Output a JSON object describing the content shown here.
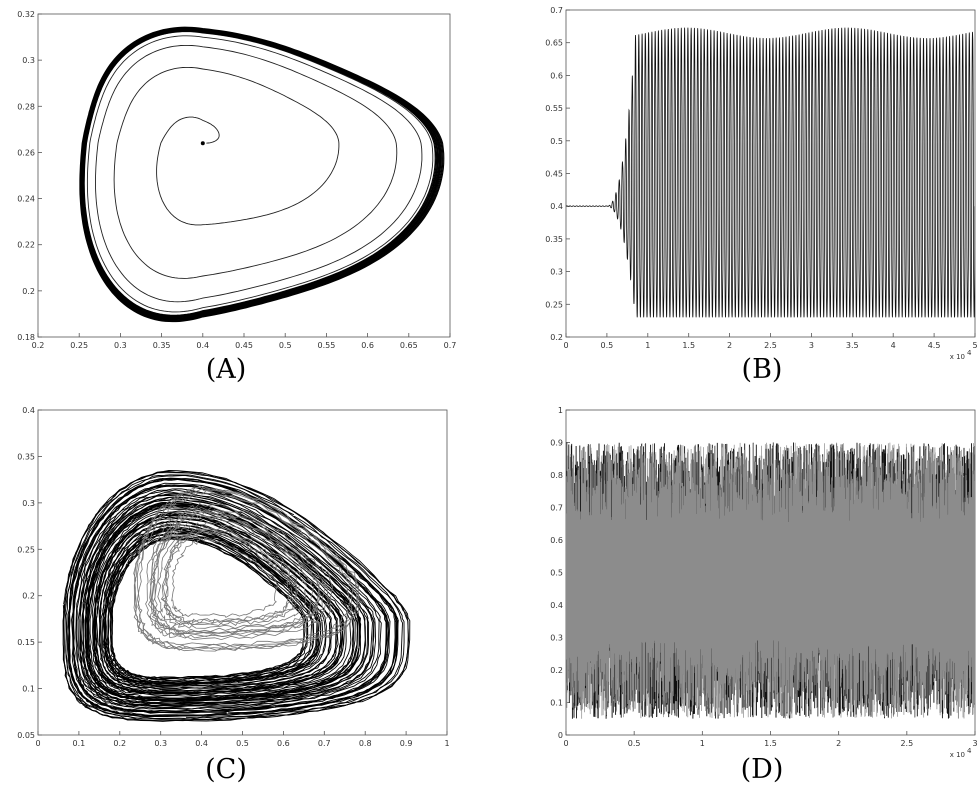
{
  "chart_data": [
    {
      "id": "A",
      "type": "line",
      "panel_label": "(A)",
      "description_kind": "phase-portrait spiral converging to limit cycle",
      "xlim": [
        0.2,
        0.7
      ],
      "ylim": [
        0.18,
        0.32
      ],
      "x_ticks": [
        "0.2",
        "0.25",
        "0.3",
        "0.35",
        "0.4",
        "0.45",
        "0.5",
        "0.55",
        "0.6",
        "0.65",
        "0.7"
      ],
      "y_ticks": [
        "0.18",
        "0.2",
        "0.22",
        "0.24",
        "0.26",
        "0.28",
        "0.3",
        "0.32"
      ],
      "fixed_point": [
        0.4,
        0.264
      ],
      "limit_cycle": {
        "x_min": 0.245,
        "x_max": 0.67,
        "y_min": 0.186,
        "y_max": 0.311
      },
      "grid": false,
      "color": "#000000"
    },
    {
      "id": "B",
      "type": "line",
      "panel_label": "(B)",
      "description_kind": "time series oscillation",
      "xlim": [
        0,
        5
      ],
      "ylim": [
        0.2,
        0.7
      ],
      "x_ticks": [
        "0",
        "0.5",
        "1",
        "1.5",
        "2",
        "2.5",
        "3",
        "3.5",
        "4",
        "4.5",
        "5"
      ],
      "y_ticks": [
        "0.2",
        "0.25",
        "0.3",
        "0.35",
        "0.4",
        "0.45",
        "0.5",
        "0.55",
        "0.6",
        "0.65",
        "0.7"
      ],
      "x_multiplier": "x 10",
      "x_multiplier_exp": "4",
      "initial_level": 0.4,
      "onset_x": 0.5,
      "envelope": {
        "upper": 0.665,
        "lower": 0.23
      },
      "grid": false,
      "color": "#000000"
    },
    {
      "id": "C",
      "type": "line",
      "panel_label": "(C)",
      "description_kind": "chaotic phase-portrait attractor",
      "xlim": [
        0,
        1
      ],
      "ylim": [
        0.05,
        0.4
      ],
      "x_ticks": [
        "0",
        "0.1",
        "0.2",
        "0.3",
        "0.4",
        "0.5",
        "0.6",
        "0.7",
        "0.8",
        "0.9",
        "1"
      ],
      "y_ticks": [
        "0.05",
        "0.1",
        "0.15",
        "0.2",
        "0.25",
        "0.3",
        "0.35",
        "0.4"
      ],
      "attractor": {
        "x_min": 0.06,
        "x_max": 0.91,
        "y_min": 0.065,
        "y_max": 0.335
      },
      "grid": false,
      "color": "#000000"
    },
    {
      "id": "D",
      "type": "line",
      "panel_label": "(D)",
      "description_kind": "chaotic time series, two overlaid series",
      "xlim": [
        0,
        3
      ],
      "ylim": [
        0,
        1
      ],
      "x_ticks": [
        "0",
        "0.5",
        "1",
        "1.5",
        "2",
        "2.5",
        "3"
      ],
      "y_ticks": [
        "0",
        "0.1",
        "0.2",
        "0.3",
        "0.4",
        "0.5",
        "0.6",
        "0.7",
        "0.8",
        "0.9",
        "1"
      ],
      "x_multiplier": "x 10",
      "x_multiplier_exp": "4",
      "range": {
        "upper": 0.9,
        "lower": 0.05
      },
      "grid": false,
      "series_colors": [
        "#111111",
        "#8c8c8c"
      ]
    }
  ]
}
